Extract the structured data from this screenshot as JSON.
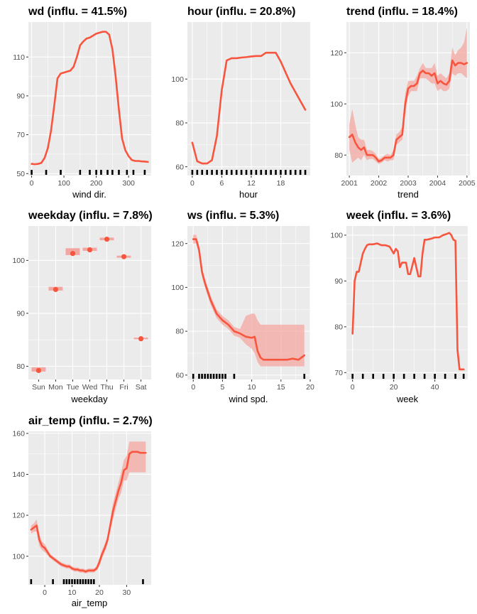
{
  "colors": {
    "panel_bg": "#ebebeb",
    "grid": "#ffffff",
    "line": "#f8553f",
    "band": "#f4a7a0",
    "rug": "#000000",
    "tick_text": "#4d4d4d"
  },
  "chart_data": [
    {
      "type": "line",
      "title": "wd (influ. = 41.5%)",
      "xlabel": "wind dir.",
      "xlim": [
        -10,
        370
      ],
      "ylim": [
        49,
        128
      ],
      "xticks": [
        0,
        100,
        200,
        300
      ],
      "yticks": [
        50,
        70,
        90,
        110
      ],
      "x": [
        0,
        10,
        20,
        30,
        40,
        50,
        60,
        70,
        80,
        90,
        100,
        110,
        120,
        130,
        140,
        150,
        160,
        170,
        180,
        190,
        200,
        210,
        220,
        230,
        240,
        250,
        260,
        270,
        280,
        290,
        300,
        310,
        320,
        330,
        340,
        350,
        360
      ],
      "y": [
        55,
        54.8,
        55,
        55.5,
        58,
        63,
        72,
        85,
        99,
        101.5,
        102,
        102.5,
        103,
        105,
        110,
        116,
        118,
        119.5,
        120,
        121,
        122,
        122.5,
        123,
        123,
        121.5,
        114,
        100,
        83,
        68,
        62,
        59,
        57,
        56.5,
        56.5,
        56.3,
        56.2,
        56
      ],
      "band_lower": [],
      "band_upper": [],
      "rug": [
        0,
        45,
        90,
        150,
        180,
        200,
        215,
        235,
        250,
        270,
        295,
        315,
        350
      ]
    },
    {
      "type": "line",
      "title": "hour (influ. = 20.8%)",
      "xlabel": "hour",
      "xlim": [
        -1,
        24
      ],
      "ylim": [
        56,
        126
      ],
      "xticks": [
        0,
        6,
        12,
        18
      ],
      "yticks": [
        60,
        80,
        100
      ],
      "x": [
        0,
        1,
        2,
        3,
        4,
        5,
        6,
        7,
        8,
        9,
        10,
        11,
        12,
        13,
        14,
        15,
        16,
        17,
        18,
        19,
        20,
        21,
        22,
        23
      ],
      "y": [
        71,
        62.5,
        61.5,
        61.5,
        63,
        74,
        95,
        108.5,
        109.5,
        109.5,
        109.8,
        110,
        110.3,
        110.5,
        110.5,
        112,
        112,
        112,
        108,
        103,
        98,
        94,
        90,
        86
      ],
      "band_lower": [],
      "band_upper": [],
      "rug": [
        0,
        1,
        2,
        3,
        4,
        5,
        6,
        7,
        8,
        9,
        10,
        11,
        12,
        13,
        14,
        15,
        16,
        17,
        18,
        19,
        20,
        21,
        22,
        23
      ]
    },
    {
      "type": "line",
      "title": "trend (influ. = 18.4%)",
      "xlabel": "trend",
      "xlim": [
        2000.9,
        2005.1
      ],
      "ylim": [
        72,
        132
      ],
      "xticks": [
        2001,
        2002,
        2003,
        2004,
        2005
      ],
      "yticks": [
        80,
        100,
        120
      ],
      "x": [
        2001.0,
        2001.1,
        2001.2,
        2001.3,
        2001.4,
        2001.5,
        2001.6,
        2001.7,
        2001.8,
        2001.9,
        2002.0,
        2002.1,
        2002.2,
        2002.3,
        2002.4,
        2002.5,
        2002.6,
        2002.7,
        2002.8,
        2002.9,
        2003.0,
        2003.1,
        2003.2,
        2003.3,
        2003.4,
        2003.5,
        2003.6,
        2003.7,
        2003.8,
        2003.9,
        2004.0,
        2004.1,
        2004.2,
        2004.3,
        2004.4,
        2004.5,
        2004.6,
        2004.7,
        2004.8,
        2004.9,
        2005.0
      ],
      "y": [
        87,
        88,
        85,
        83,
        82,
        83,
        80,
        80,
        80,
        79,
        77.5,
        78,
        79,
        79,
        79,
        80,
        86,
        87,
        88,
        100,
        106,
        107,
        107,
        108,
        112,
        113,
        112,
        112,
        111,
        112,
        108,
        109,
        108,
        107.5,
        109,
        117,
        115,
        116,
        116,
        115.5,
        116
      ],
      "band_lower": [
        82,
        77,
        78,
        79,
        78,
        80,
        78,
        78.5,
        78.5,
        77.5,
        76.5,
        77,
        78,
        77.5,
        78,
        78,
        84,
        85,
        86,
        96,
        103,
        105,
        105,
        105,
        110,
        110,
        110,
        109,
        108,
        108,
        105,
        106,
        105,
        105,
        106,
        112,
        111,
        112,
        112,
        111,
        110
      ],
      "band_upper": [
        92,
        98,
        92,
        87,
        86,
        86,
        82,
        82,
        81.5,
        80.5,
        78.5,
        79,
        80,
        80.5,
        80,
        82,
        88,
        89,
        91,
        104,
        109,
        109,
        109,
        111,
        114,
        116,
        114,
        114,
        114,
        116,
        111,
        112,
        111,
        110,
        112,
        122,
        119,
        121,
        122,
        124,
        130
      ],
      "rug": []
    },
    {
      "type": "scatter",
      "title": "weekday (influ. = 7.8%)",
      "xlabel": "weekday",
      "xlim": [
        0.4,
        7.6
      ],
      "ylim": [
        77.5,
        106.5
      ],
      "categories": [
        "Sun",
        "Mon",
        "Tue",
        "Wed",
        "Thu",
        "Fri",
        "Sat"
      ],
      "yticks": [
        80,
        90,
        100
      ],
      "values": [
        79.2,
        94.5,
        101.3,
        102,
        104,
        100.7,
        85.2
      ],
      "band_lower": [
        79.0,
        94.3,
        101.0,
        101.8,
        103.8,
        100.5,
        85.1
      ],
      "band_upper": [
        79.8,
        95.0,
        102.3,
        102.4,
        104.3,
        100.9,
        85.4
      ]
    },
    {
      "type": "line",
      "title": "ws (influ. = 5.3%)",
      "xlabel": "wind spd.",
      "xlim": [
        -1,
        20
      ],
      "ylim": [
        58,
        128
      ],
      "xticks": [
        0,
        5,
        10,
        15,
        20
      ],
      "yticks": [
        60,
        80,
        100,
        120
      ],
      "x": [
        0,
        0.5,
        1,
        1.5,
        2,
        3,
        4,
        5,
        6,
        7,
        8,
        9,
        10,
        10.5,
        11,
        11.5,
        12,
        13,
        14,
        15,
        16,
        17,
        18,
        19
      ],
      "y": [
        122,
        122,
        117,
        107,
        102,
        94,
        88,
        85,
        83,
        80,
        79,
        77.5,
        77,
        77.5,
        71,
        68,
        67,
        67,
        67,
        67,
        67,
        67.5,
        67,
        69
      ],
      "band_lower": [
        120,
        120,
        115,
        105,
        100,
        92,
        86,
        83,
        81,
        78,
        77,
        74,
        72,
        70,
        66,
        64,
        64,
        64,
        64,
        64,
        64,
        64,
        64,
        64
      ],
      "band_upper": [
        124,
        124,
        119,
        109,
        104,
        96,
        90,
        87,
        85,
        82,
        81,
        87,
        88,
        88,
        85,
        83,
        83,
        83,
        83,
        83,
        83,
        83,
        83,
        83
      ],
      "rug": [
        0,
        1,
        1.5,
        2,
        2.5,
        3,
        3.5,
        4,
        4.5,
        5,
        5.5,
        7,
        19
      ]
    },
    {
      "type": "line",
      "title": "week (influ. = 3.6%)",
      "xlabel": "week",
      "xlim": [
        -3,
        56
      ],
      "ylim": [
        68.5,
        102
      ],
      "xticks": [
        0,
        20,
        40
      ],
      "yticks": [
        70,
        80,
        90,
        100
      ],
      "x": [
        0,
        1,
        2,
        3,
        4,
        5,
        6,
        7,
        8,
        10,
        12,
        14,
        16,
        18,
        20,
        21,
        22,
        23,
        24,
        26,
        27,
        28,
        30,
        31,
        32,
        33,
        34,
        35,
        36,
        38,
        40,
        42,
        44,
        46,
        47,
        48,
        49,
        50,
        51,
        52,
        53,
        54
      ],
      "y": [
        78.5,
        90,
        92,
        92,
        94,
        96,
        97,
        97.8,
        98,
        98,
        98.2,
        97.8,
        97.8,
        97.5,
        96,
        97,
        96.5,
        93,
        94,
        94,
        91.5,
        91.5,
        95,
        93,
        91,
        91,
        96,
        99,
        99,
        99.2,
        99.5,
        99.5,
        100,
        100.3,
        100.5,
        100,
        99,
        98.8,
        75,
        70.7,
        70.7,
        70.7
      ],
      "band_lower": [],
      "band_upper": [],
      "rug": [
        0,
        5,
        10,
        15,
        20,
        25,
        30,
        35,
        40,
        45,
        50,
        54
      ]
    },
    {
      "type": "line",
      "title": "air_temp (influ. = 2.7%)",
      "xlabel": "air_temp",
      "xlim": [
        -6,
        39
      ],
      "ylim": [
        86,
        161
      ],
      "xticks": [
        0,
        10,
        20,
        30
      ],
      "yticks": [
        100,
        120,
        140,
        160
      ],
      "x": [
        -5,
        -4,
        -3,
        -2,
        -1,
        0,
        1,
        2,
        3,
        4,
        5,
        6,
        7,
        8,
        9,
        10,
        11,
        12,
        13,
        14,
        15,
        16,
        17,
        18,
        19,
        20,
        21,
        22,
        23,
        24,
        25,
        26,
        27,
        28,
        29,
        30,
        31,
        32,
        33,
        34,
        35,
        36,
        37
      ],
      "y": [
        113,
        114,
        115,
        108,
        105,
        104,
        102,
        100,
        99,
        98,
        97,
        96,
        95.5,
        95,
        95,
        94,
        93.5,
        93.5,
        93,
        93,
        92.5,
        93,
        93,
        93,
        94,
        97,
        101,
        104,
        108,
        115,
        122,
        127,
        132,
        136,
        142,
        143,
        150,
        151,
        151,
        151,
        150.5,
        150.5,
        150.5
      ],
      "band_lower": [
        111,
        112,
        112,
        105,
        103,
        102,
        100.5,
        99,
        98,
        97,
        96,
        95,
        94.5,
        94,
        94,
        93,
        92.5,
        92.5,
        92,
        92,
        91.5,
        92,
        92,
        92,
        93,
        95,
        99,
        102,
        106,
        112,
        118,
        123,
        128,
        131,
        137,
        137,
        141,
        141,
        141,
        141,
        141,
        141,
        141
      ],
      "band_upper": [
        115,
        116,
        118,
        111,
        107,
        106,
        103.5,
        101,
        100,
        99,
        98,
        97,
        96.5,
        96,
        96,
        95,
        94.5,
        94.5,
        94,
        94,
        93.5,
        94,
        94,
        94,
        95,
        99,
        103,
        106,
        110,
        118,
        126,
        131,
        136,
        141,
        147,
        149,
        156,
        156,
        156,
        156,
        156,
        156,
        156
      ],
      "rug": [
        -5,
        3,
        7,
        8,
        9,
        10,
        11,
        12,
        13,
        14,
        15,
        16,
        17,
        18,
        36
      ]
    }
  ]
}
